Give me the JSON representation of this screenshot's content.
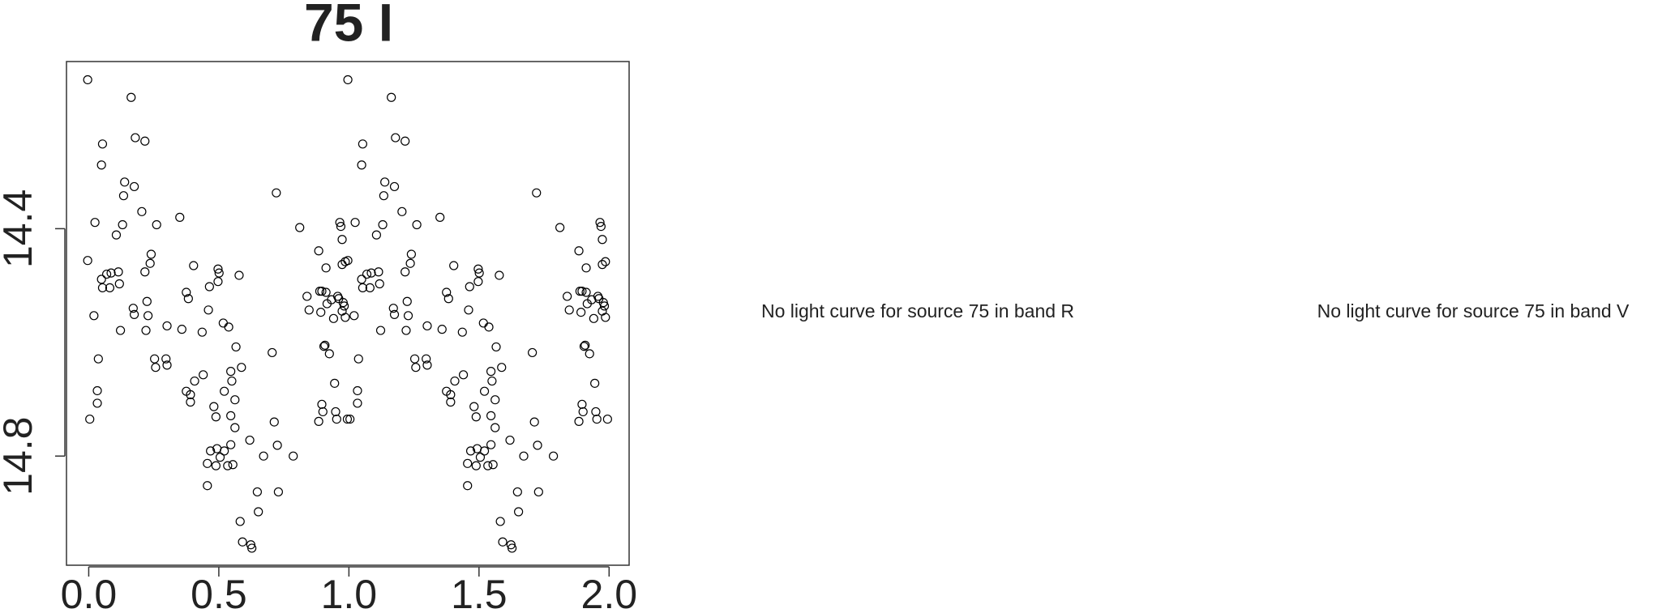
{
  "chart_data": {
    "type": "scatter",
    "title": "75 I",
    "x": [
      -0.004,
      -0.004,
      0.004,
      0.02,
      0.024,
      0.033,
      0.033,
      0.037,
      0.049,
      0.049,
      0.053,
      0.053,
      0.069,
      0.081,
      0.086,
      0.106,
      0.114,
      0.118,
      0.122,
      0.13,
      0.134,
      0.138,
      0.163,
      0.171,
      0.175,
      0.175,
      0.179,
      0.204,
      0.216,
      0.216,
      0.22,
      0.224,
      0.228,
      0.236,
      0.24,
      0.253,
      0.257,
      0.261,
      0.297,
      0.301,
      0.301,
      0.35,
      0.358,
      0.375,
      0.375,
      0.383,
      0.391,
      0.391,
      0.403,
      0.407,
      0.436,
      0.44,
      0.456,
      0.456,
      0.46,
      0.464,
      0.468,
      0.481,
      0.489,
      0.489,
      0.493,
      0.497,
      0.497,
      0.501,
      0.505,
      0.517,
      0.521,
      0.521,
      0.534,
      0.538,
      0.546,
      0.546,
      0.546,
      0.55,
      0.554,
      0.562,
      0.562,
      0.566,
      0.578,
      0.582,
      0.587,
      0.591,
      0.619,
      0.623,
      0.627,
      0.648,
      0.652,
      0.672,
      0.705,
      0.713,
      0.721,
      0.725,
      0.729,
      0.786,
      0.811,
      0.839,
      0.847,
      0.884,
      0.884,
      0.888,
      0.892,
      0.896,
      0.896,
      0.9,
      0.904,
      0.908,
      0.912,
      0.912,
      0.916,
      0.925,
      0.933,
      0.941,
      0.945,
      0.949,
      0.953,
      0.957,
      0.961,
      0.965,
      0.969,
      0.974,
      0.974,
      0.974,
      0.978,
      0.982,
      0.986,
      0.986,
      0.994,
      0.996,
      0.996,
      1.004,
      1.02,
      1.024,
      1.033,
      1.033,
      1.037,
      1.049,
      1.049,
      1.053,
      1.053,
      1.069,
      1.081,
      1.086,
      1.106,
      1.114,
      1.118,
      1.122,
      1.13,
      1.134,
      1.138,
      1.163,
      1.171,
      1.175,
      1.175,
      1.179,
      1.204,
      1.216,
      1.216,
      1.22,
      1.224,
      1.228,
      1.236,
      1.24,
      1.253,
      1.257,
      1.261,
      1.297,
      1.301,
      1.301,
      1.35,
      1.358,
      1.375,
      1.375,
      1.383,
      1.391,
      1.391,
      1.403,
      1.407,
      1.436,
      1.44,
      1.456,
      1.456,
      1.46,
      1.464,
      1.468,
      1.481,
      1.489,
      1.489,
      1.493,
      1.497,
      1.497,
      1.501,
      1.505,
      1.517,
      1.521,
      1.521,
      1.534,
      1.538,
      1.546,
      1.546,
      1.546,
      1.55,
      1.554,
      1.562,
      1.562,
      1.566,
      1.578,
      1.582,
      1.587,
      1.591,
      1.619,
      1.623,
      1.627,
      1.648,
      1.652,
      1.672,
      1.705,
      1.713,
      1.721,
      1.725,
      1.729,
      1.786,
      1.811,
      1.839,
      1.847,
      1.884,
      1.884,
      1.888,
      1.892,
      1.896,
      1.896,
      1.9,
      1.904,
      1.908,
      1.912,
      1.912,
      1.916,
      1.925,
      1.933,
      1.941,
      1.945,
      1.949,
      1.953,
      1.957,
      1.961,
      1.965,
      1.969,
      1.974,
      1.974,
      1.974,
      1.978,
      1.982,
      1.986,
      1.986,
      1.994
    ],
    "values": [
      14.138,
      14.456,
      14.735,
      14.553,
      14.389,
      14.685,
      14.707,
      14.629,
      14.489,
      14.288,
      14.251,
      14.504,
      14.48,
      14.504,
      14.478,
      14.411,
      14.476,
      14.497,
      14.579,
      14.393,
      14.342,
      14.318,
      14.169,
      14.54,
      14.326,
      14.551,
      14.24,
      14.37,
      14.246,
      14.476,
      14.579,
      14.528,
      14.553,
      14.461,
      14.445,
      14.629,
      14.644,
      14.393,
      14.629,
      14.571,
      14.64,
      14.38,
      14.577,
      14.512,
      14.686,
      14.523,
      14.692,
      14.705,
      14.465,
      14.668,
      14.582,
      14.657,
      14.813,
      14.852,
      14.543,
      14.502,
      14.791,
      14.713,
      14.817,
      14.731,
      14.787,
      14.493,
      14.471,
      14.478,
      14.802,
      14.566,
      14.686,
      14.791,
      14.817,
      14.573,
      14.78,
      14.651,
      14.729,
      14.668,
      14.815,
      14.75,
      14.701,
      14.608,
      14.482,
      14.915,
      14.644,
      14.951,
      14.772,
      14.956,
      14.962,
      14.863,
      14.898,
      14.8,
      14.618,
      14.74,
      14.337,
      14.781,
      14.863,
      14.8,
      14.398,
      14.519,
      14.543,
      14.739,
      14.439,
      14.51,
      14.547,
      14.709,
      14.51,
      14.722,
      14.607,
      14.605,
      14.512,
      14.469,
      14.532,
      14.62,
      14.525,
      14.558,
      14.672,
      14.722,
      14.735,
      14.519,
      14.523,
      14.389,
      14.396,
      14.419,
      14.463,
      14.545,
      14.53,
      14.536,
      14.458,
      14.556,
      14.735,
      14.138,
      14.456,
      14.735,
      14.553,
      14.389,
      14.685,
      14.707,
      14.629,
      14.489,
      14.288,
      14.251,
      14.504,
      14.48,
      14.504,
      14.478,
      14.411,
      14.476,
      14.497,
      14.579,
      14.393,
      14.342,
      14.318,
      14.169,
      14.54,
      14.326,
      14.551,
      14.24,
      14.37,
      14.246,
      14.476,
      14.579,
      14.528,
      14.553,
      14.461,
      14.445,
      14.629,
      14.644,
      14.393,
      14.629,
      14.571,
      14.64,
      14.38,
      14.577,
      14.512,
      14.686,
      14.523,
      14.692,
      14.705,
      14.465,
      14.668,
      14.582,
      14.657,
      14.813,
      14.852,
      14.543,
      14.502,
      14.791,
      14.713,
      14.817,
      14.731,
      14.787,
      14.493,
      14.471,
      14.478,
      14.802,
      14.566,
      14.686,
      14.791,
      14.817,
      14.573,
      14.78,
      14.651,
      14.729,
      14.668,
      14.815,
      14.75,
      14.701,
      14.608,
      14.482,
      14.915,
      14.644,
      14.951,
      14.772,
      14.956,
      14.962,
      14.863,
      14.898,
      14.8,
      14.618,
      14.74,
      14.337,
      14.781,
      14.863,
      14.8,
      14.398,
      14.519,
      14.543,
      14.739,
      14.439,
      14.51,
      14.547,
      14.709,
      14.51,
      14.722,
      14.607,
      14.605,
      14.512,
      14.469,
      14.532,
      14.62,
      14.525,
      14.558,
      14.672,
      14.722,
      14.735,
      14.519,
      14.523,
      14.389,
      14.396,
      14.419,
      14.463,
      14.545,
      14.53,
      14.536,
      14.458,
      14.556,
      14.735
    ],
    "color": "#000000",
    "xlim": [
      -0.0855,
      2.077
    ],
    "ylim": [
      14.992,
      14.106
    ],
    "xticks": [
      {
        "value": 0,
        "label": "0.0"
      },
      0.5,
      {
        "value": 1,
        "label": "1.0"
      },
      1.5,
      {
        "value": 2,
        "label": "2.0"
      }
    ],
    "yticks": [
      14.4,
      14.8
    ]
  },
  "notes": [
    "No light curve for source 75 in band R",
    "No light curve for source 75 in band V"
  ]
}
